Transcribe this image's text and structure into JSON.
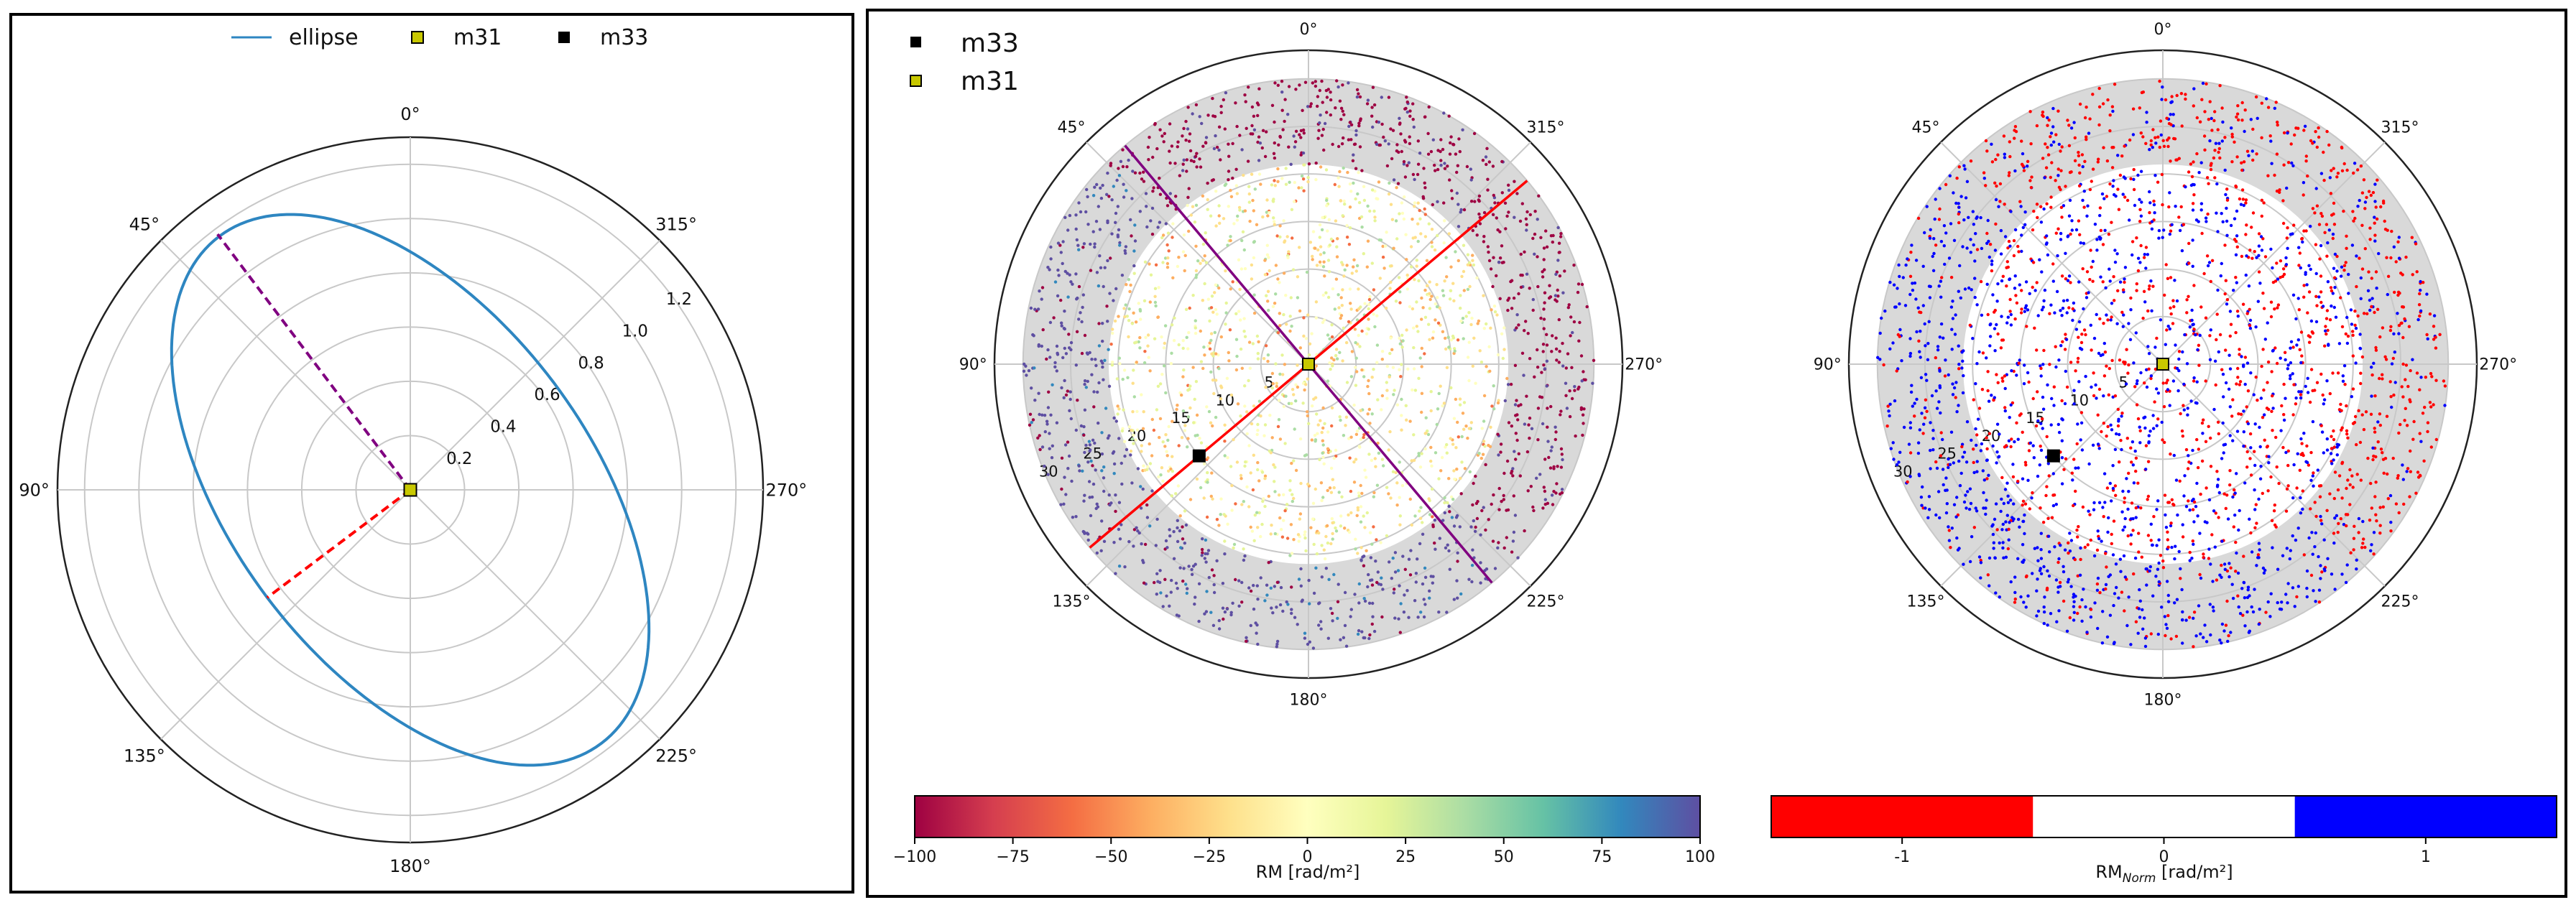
{
  "chart_data": [
    {
      "type": "polar-line",
      "legend": {
        "placement": "top-center",
        "entries": [
          {
            "label": "ellipse",
            "marker": "line",
            "color": "#2e86c1"
          },
          {
            "label": "m31",
            "marker": "square",
            "color": "#c8c800"
          },
          {
            "label": "m33",
            "marker": "square",
            "color": "#000000"
          }
        ]
      },
      "theta_zero": "top",
      "theta_direction": "counterclockwise",
      "theta_ticks": [
        "0°",
        "45°",
        "90°",
        "135°",
        "180°",
        "225°",
        "270°",
        "315°"
      ],
      "r_ticks": [
        "0.2",
        "0.4",
        "0.6",
        "0.8",
        "1.0",
        "1.2"
      ],
      "r_tick_values": [
        0.2,
        0.4,
        0.6,
        0.8,
        1.0,
        1.2
      ],
      "rlim": [
        0,
        1.3
      ],
      "grid": true,
      "ellipse": {
        "semi_major": 1.17,
        "semi_minor": 0.66,
        "major_axis_pa_deg": 37,
        "color": "#2e86c1"
      },
      "lines": [
        {
          "from_r": 0,
          "to_r": 1.18,
          "theta_deg": 37,
          "style": "dashed",
          "color": "#800080"
        },
        {
          "from_r": 0,
          "to_r": 0.66,
          "theta_deg": 127,
          "style": "dashed",
          "color": "#ff0000"
        }
      ],
      "markers": [
        {
          "name": "m31",
          "r": 0,
          "theta_deg": 0,
          "color": "#c8c800"
        }
      ]
    },
    {
      "type": "polar-scatter",
      "legend": {
        "placement": "top-left",
        "entries": [
          {
            "label": "m33",
            "marker": "square",
            "color": "#000000"
          },
          {
            "label": "m31",
            "marker": "square",
            "color": "#c8c800"
          }
        ]
      },
      "theta_ticks": [
        "0°",
        "45°",
        "90°",
        "135°",
        "180°",
        "225°",
        "270°",
        "315°"
      ],
      "r_ticks": [
        "5",
        "10",
        "15",
        "20",
        "25",
        "30"
      ],
      "r_tick_values": [
        5,
        10,
        15,
        20,
        25,
        30
      ],
      "rlim": [
        0,
        33
      ],
      "grid": true,
      "shaded_annulus": [
        21,
        30
      ],
      "lines": [
        {
          "theta_a_deg": 40,
          "theta_b_deg": 220,
          "color": "#800080"
        },
        {
          "theta_a_deg": 310,
          "theta_b_deg": 130,
          "color": "#ff0000"
        }
      ],
      "markers": [
        {
          "name": "m31",
          "r": 0,
          "theta_deg": 0,
          "color": "#c8c800"
        },
        {
          "name": "m33",
          "r": 15,
          "theta_deg": 130,
          "color": "#000000"
        }
      ],
      "scatter": {
        "color_scale": "Spectral",
        "clim": [
          -100,
          100
        ],
        "sample_n": 2600
      },
      "colorbar": {
        "label": "RM [rad/m²]",
        "ticks": [
          "−100",
          "−75",
          "−50",
          "−25",
          "0",
          "25",
          "50",
          "75",
          "100"
        ],
        "tick_values": [
          -100,
          -75,
          -50,
          -25,
          0,
          25,
          50,
          75,
          100
        ]
      }
    },
    {
      "type": "polar-scatter",
      "theta_ticks": [
        "0°",
        "45°",
        "90°",
        "135°",
        "180°",
        "225°",
        "270°",
        "315°"
      ],
      "r_ticks": [
        "5",
        "10",
        "15",
        "20",
        "25",
        "30"
      ],
      "r_tick_values": [
        5,
        10,
        15,
        20,
        25,
        30
      ],
      "rlim": [
        0,
        33
      ],
      "grid": true,
      "shaded_annulus": [
        21,
        30
      ],
      "markers": [
        {
          "name": "m31",
          "r": 0,
          "theta_deg": 0,
          "color": "#c8c800"
        },
        {
          "name": "m33",
          "r": 15,
          "theta_deg": 130,
          "color": "#000000"
        }
      ],
      "scatter": {
        "classes": [
          -1,
          1
        ],
        "colors": {
          "-1": "#ff0000",
          "0": "#ffffff",
          "1": "#0000ff"
        },
        "sample_n": 2600
      },
      "colorbar": {
        "label_main": "RM",
        "label_sub": "Norm",
        "label_unit": " [rad/m²]",
        "ticks": [
          "-1",
          "0",
          "1"
        ],
        "tick_values": [
          -1,
          0,
          1
        ],
        "segments": [
          "#ff0000",
          "#ffffff",
          "#0000ff"
        ]
      }
    }
  ]
}
